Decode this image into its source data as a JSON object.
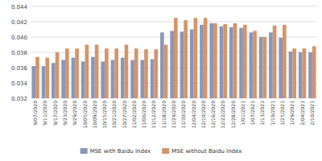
{
  "chart_data": {
    "type": "bar",
    "categories": [
      "9/07/2020",
      "9/11/2020",
      "9/17/2020",
      "9/23/2020",
      "9/29/2020",
      "10/05/2020",
      "10/09/2020",
      "10/15/2020",
      "10/21/2020",
      "10/27/2020",
      "11/02/2020",
      "11/06/2020",
      "11/12/2020",
      "11/18/2020",
      "11/24/2020",
      "11/30/2020",
      "12/04/2020",
      "12/10/2020",
      "12/16/2020",
      "12/22/2020",
      "12/28/2020",
      "1/01/2021",
      "1/07/2021",
      "1/13/2021",
      "1/19/2021",
      "1/25/2021",
      "1/29/2021",
      "2/04/2021",
      "2/10/2021"
    ],
    "series": [
      {
        "name": "MSE with Baidu Index",
        "color": "#8b96b8",
        "values": [
          0.0362,
          0.0362,
          0.0366,
          0.037,
          0.0373,
          0.0368,
          0.0374,
          0.0368,
          0.037,
          0.0373,
          0.037,
          0.037,
          0.0371,
          0.0406,
          0.0408,
          0.0407,
          0.041,
          0.0416,
          0.0418,
          0.0414,
          0.0413,
          0.0412,
          0.0406,
          0.04,
          0.0406,
          0.0399,
          0.0381,
          0.038,
          0.038
        ]
      },
      {
        "name": "MSE without Baidu Index",
        "color": "#d4956a",
        "values": [
          0.0374,
          0.0373,
          0.038,
          0.0385,
          0.0385,
          0.039,
          0.039,
          0.0385,
          0.0385,
          0.039,
          0.0385,
          0.0384,
          0.0384,
          0.039,
          0.0425,
          0.0422,
          0.0425,
          0.0425,
          0.0418,
          0.0417,
          0.0418,
          0.0416,
          0.0408,
          0.04,
          0.0415,
          0.0416,
          0.0385,
          0.0385,
          0.0388
        ]
      }
    ],
    "ylim": [
      0.032,
      0.044
    ],
    "yticks": [
      0.032,
      0.034,
      0.036,
      0.038,
      {
        "value": 0.04,
        "label": "0.040"
      },
      0.042,
      0.044
    ],
    "grid": true,
    "legend": "bottom"
  }
}
